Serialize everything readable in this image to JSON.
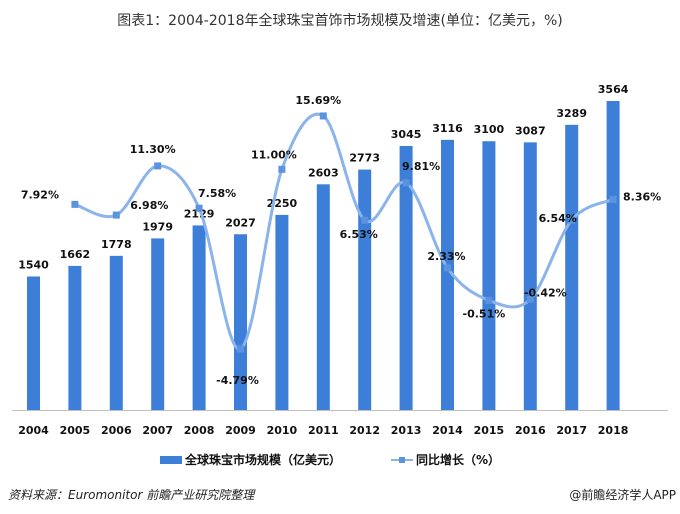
{
  "title": "图表1：2004-2018年全球珠宝首饰市场规模及增速(单位：亿美元，%)",
  "chart_data": {
    "type": "bar+line",
    "title": "图表1：2004-2018年全球珠宝首饰市场规模及增速(单位：亿美元，%)",
    "categories": [
      "2004",
      "2005",
      "2006",
      "2007",
      "2008",
      "2009",
      "2010",
      "2011",
      "2012",
      "2013",
      "2014",
      "2015",
      "2016",
      "2017",
      "2018"
    ],
    "series": [
      {
        "name": "全球珠宝市场规模（亿美元）",
        "type": "bar",
        "color": "#3d7ed8",
        "values": [
          1540,
          1662,
          1778,
          1979,
          2129,
          2027,
          2250,
          2603,
          2773,
          3045,
          3116,
          3100,
          3087,
          3289,
          3564
        ],
        "labels": [
          "1540",
          "1662",
          "1778",
          "1979",
          "2129",
          "2027",
          "2250",
          "2603",
          "2773",
          "3045",
          "3116",
          "3100",
          "3087",
          "3289",
          "3564"
        ]
      },
      {
        "name": "同比增长（%）",
        "type": "line",
        "color": "#8ab4ea",
        "smooth": true,
        "values": [
          null,
          7.92,
          6.98,
          11.3,
          7.58,
          -4.79,
          11.0,
          15.69,
          6.53,
          9.81,
          2.33,
          -0.51,
          -0.42,
          6.54,
          8.36
        ],
        "labels": [
          null,
          "7.92%",
          "6.98%",
          "11.30%",
          "7.58%",
          "-4.79%",
          "11.00%",
          "15.69%",
          "6.53%",
          "9.81%",
          "2.33%",
          "-0.51%",
          "-0.42%",
          "6.54%",
          "8.36%"
        ]
      }
    ],
    "grid": false,
    "legend": "bottom"
  },
  "source": "资料来源：Euromonitor 前瞻产业研究院整理",
  "credit": "@前瞻经济学人APP"
}
